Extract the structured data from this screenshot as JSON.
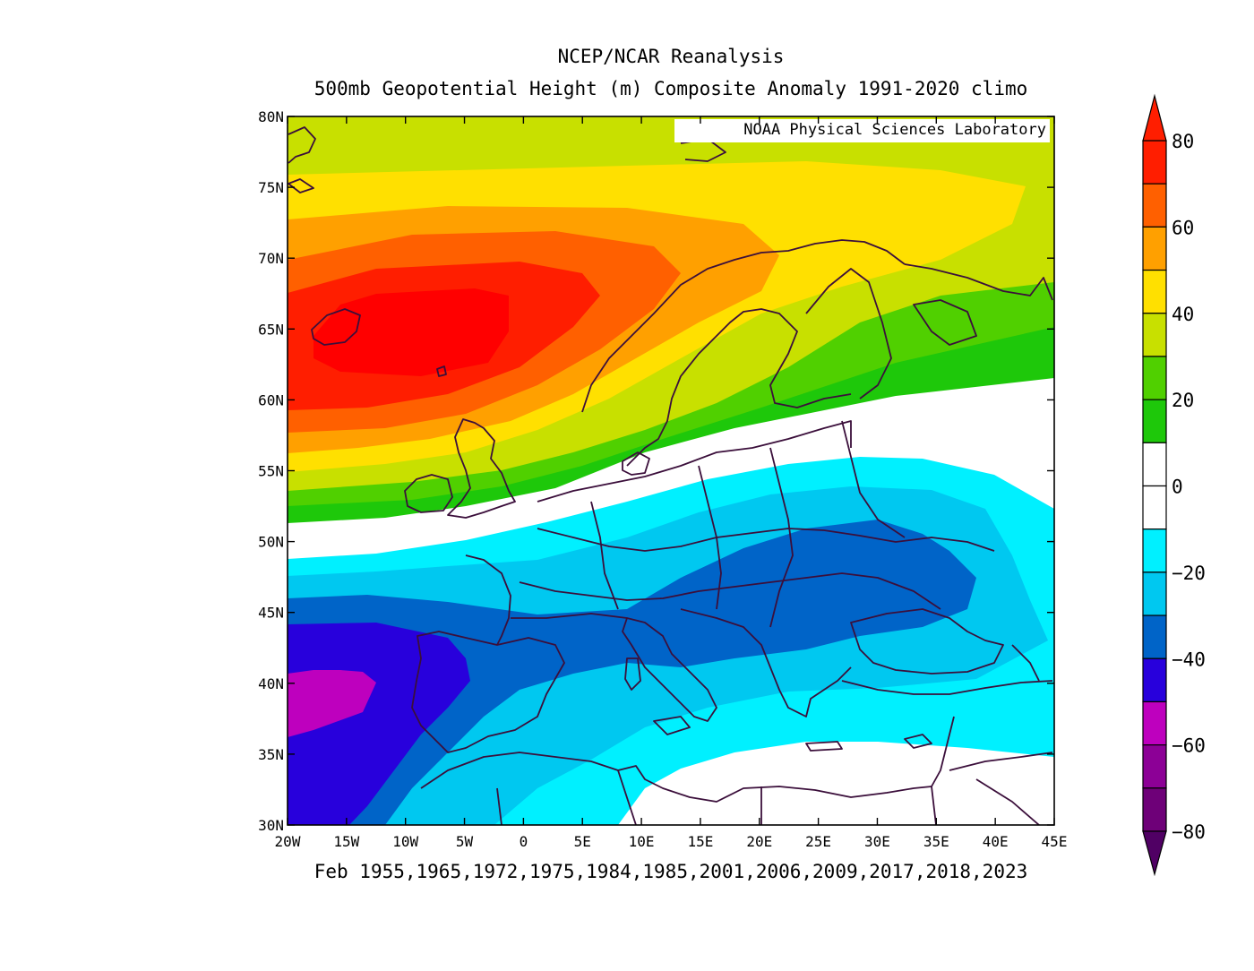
{
  "header": {
    "title": "NCEP/NCAR Reanalysis",
    "subtitle": "500mb Geopotential Height (m) Composite Anomaly 1991-2020 climo"
  },
  "watermark": "NOAA Physical Sciences Laboratory",
  "footer": "Feb 1955,1965,1972,1975,1984,1985,2001,2006,2009,2017,2018,2023",
  "map": {
    "lon_range": [
      -20,
      45
    ],
    "lat_range": [
      30,
      80
    ],
    "lat_ticks": [
      "80N",
      "75N",
      "70N",
      "65N",
      "60N",
      "55N",
      "50N",
      "45N",
      "40N",
      "35N",
      "30N"
    ],
    "lon_ticks": [
      "20W",
      "15W",
      "10W",
      "5W",
      "0",
      "5E",
      "10E",
      "15E",
      "20E",
      "25E",
      "30E",
      "35E",
      "40E",
      "45E"
    ],
    "coastline_color": "#3b0f3b"
  },
  "colorbar": {
    "labels": [
      "80",
      "60",
      "40",
      "20",
      "0",
      "−20",
      "−40",
      "−60",
      "−80"
    ],
    "colors_top_to_bottom": [
      "#ff1e00",
      "#ff6000",
      "#ffa000",
      "#ffe000",
      "#c8e000",
      "#50d000",
      "#1ec80a",
      "#ffffff",
      "#ffffff",
      "#00f0ff",
      "#00c8f0",
      "#0064c8",
      "#2800dc",
      "#be00be",
      "#8c0096",
      "#6e0078"
    ],
    "max_arrow": "#ff1e00",
    "min_arrow": "#500064"
  }
}
